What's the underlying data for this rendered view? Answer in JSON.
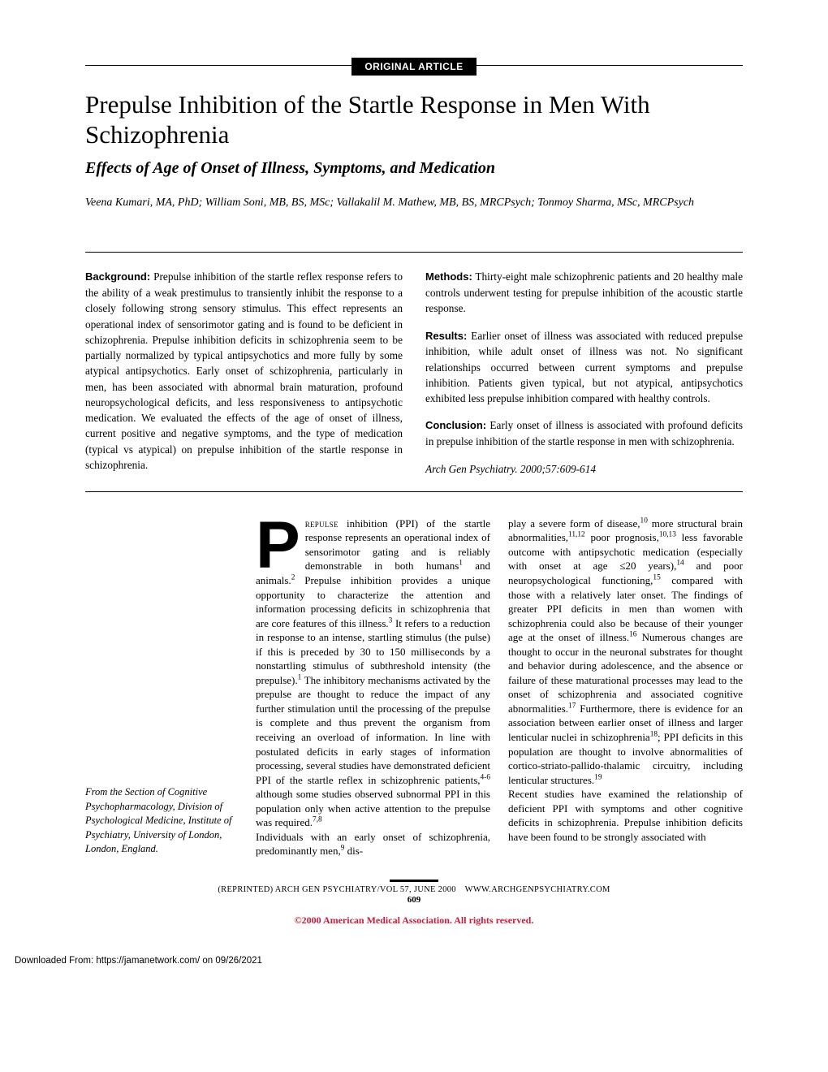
{
  "label": "ORIGINAL ARTICLE",
  "title": "Prepulse Inhibition of the Startle Response in Men With Schizophrenia",
  "subtitle": "Effects of Age of Onset of Illness, Symptoms, and Medication",
  "authors": "Veena Kumari, MA, PhD; William Soni, MB, BS, MSc; Vallakalil M. Mathew, MB, BS, MRCPsych; Tonmoy Sharma, MSc, MRCPsych",
  "abstract": {
    "background_label": "Background:",
    "background": " Prepulse inhibition of the startle reflex response refers to the ability of a weak prestimulus to transiently inhibit the response to a closely following strong sensory stimulus. This effect represents an operational index of sensorimotor gating and is found to be deficient in schizophrenia. Prepulse inhibition deficits in schizophrenia seem to be partially normalized by typical antipsychotics and more fully by some atypical antipsychotics. Early onset of schizophrenia, particularly in men, has been associated with abnormal brain maturation, profound neuropsychological deficits, and less responsiveness to antipsychotic medication. We evaluated the effects of the age of onset of illness, current positive and negative symptoms, and the type of medication (typical vs atypical) on prepulse inhibition of the startle response in schizophrenia.",
    "methods_label": "Methods:",
    "methods": " Thirty-eight male schizophrenic patients and 20 healthy male controls underwent testing for prepulse inhibition of the acoustic startle response.",
    "results_label": "Results:",
    "results": " Earlier onset of illness was associated with reduced prepulse inhibition, while adult onset of illness was not. No significant relationships occurred between current symptoms and prepulse inhibition. Patients given typical, but not atypical, antipsychotics exhibited less prepulse inhibition compared with healthy controls.",
    "conclusion_label": "Conclusion:",
    "conclusion": " Early onset of illness is associated with profound deficits in prepulse inhibition of the startle response in men with schizophrenia.",
    "citation": "Arch Gen Psychiatry. 2000;57:609-614"
  },
  "affiliation": "From the Section of Cognitive Psychopharmacology, Division of Psychological Medicine, Institute of Psychiatry, University of London, London, England.",
  "footer": {
    "line1": "(REPRINTED) ARCH GEN PSYCHIATRY/VOL 57, JUNE 2000 WWW.ARCHGENPSYCHIATRY.COM",
    "pagenum": "609"
  },
  "copyright": "©2000 American Medical Association. All rights reserved.",
  "download": "Downloaded From: https://jamanetwork.com/ on 09/26/2021",
  "colors": {
    "copyright": "#c41e3a"
  }
}
